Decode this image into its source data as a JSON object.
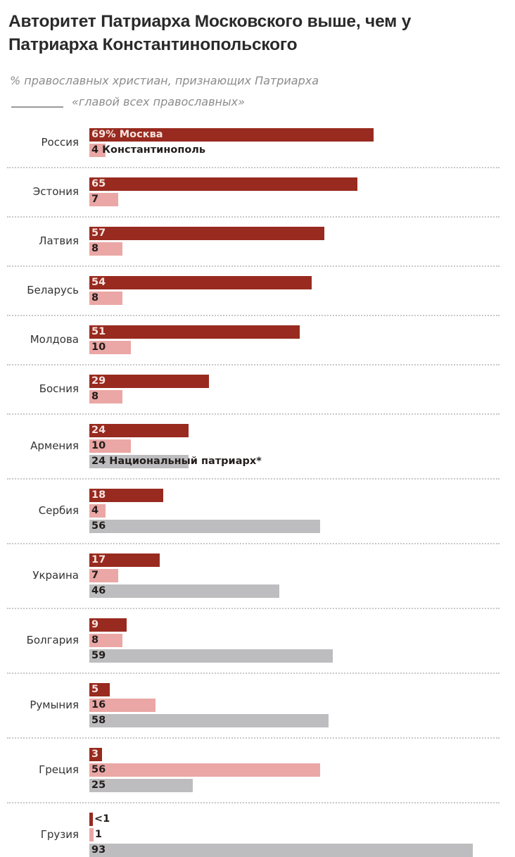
{
  "header": {
    "title_line1": "Авторитет Патриарха Московского выше, чем у",
    "title_line2": "Патриарха Константинопольского",
    "subtitle_line1": "% православных христиан, признающих Патриарха",
    "subtitle_line2": "«главой всех православных»"
  },
  "colors": {
    "moscow": "#982a1f",
    "constantinople": "#eaa7a5",
    "national": "#bdbdbf"
  },
  "chart_data": {
    "type": "bar",
    "orientation": "horizontal",
    "title": "Авторитет Патриарха Московского выше, чем у Патриарха Константинопольского",
    "subtitle": "% православных христиан, признающих Патриарха «главой всех православных»",
    "xlim": [
      0,
      100
    ],
    "grid": false,
    "legend": "inline labels on first rows",
    "categories": [
      "Россия",
      "Эстония",
      "Латвия",
      "Беларусь",
      "Молдова",
      "Босния",
      "Армения",
      "Сербия",
      "Украина",
      "Болгария",
      "Румыния",
      "Греция",
      "Грузия"
    ],
    "series": [
      {
        "name": "Москва",
        "key": "moscow",
        "values": [
          69,
          65,
          57,
          54,
          51,
          29,
          24,
          18,
          17,
          9,
          5,
          3,
          0.5
        ],
        "labels": [
          "69% Москва",
          "65",
          "57",
          "54",
          "51",
          "29",
          "24",
          "18",
          "17",
          "9",
          "5",
          "3",
          "<1"
        ]
      },
      {
        "name": "Константинополь",
        "key": "const",
        "values": [
          4,
          7,
          8,
          8,
          10,
          8,
          10,
          4,
          7,
          8,
          16,
          56,
          1
        ],
        "labels": [
          "4 Константинополь",
          "7",
          "8",
          "8",
          "10",
          "8",
          "10",
          "4",
          "7",
          "8",
          "16",
          "56",
          "1"
        ]
      },
      {
        "name": "Национальный патриарх*",
        "key": "national",
        "values": [
          null,
          null,
          null,
          null,
          null,
          null,
          24,
          56,
          46,
          59,
          58,
          25,
          93
        ],
        "labels": [
          null,
          null,
          null,
          null,
          null,
          null,
          "24 Национальный патриарх*",
          "56",
          "46",
          "59",
          "58",
          "25",
          "93"
        ]
      }
    ]
  }
}
